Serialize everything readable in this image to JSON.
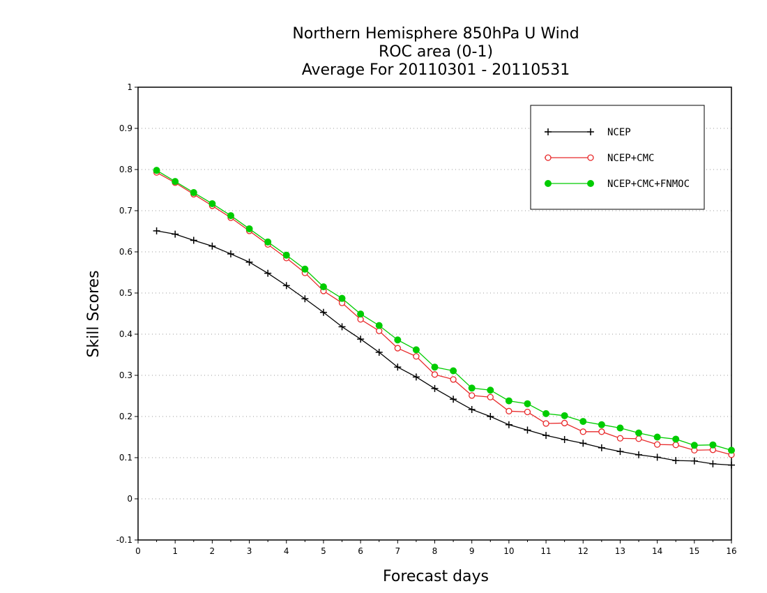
{
  "chart_data": {
    "type": "line",
    "title": "Northern Hemisphere 850hPa U Wind",
    "subtitle": "ROC area (0-1)",
    "subtitle2": "Average For 20110301 - 20110531",
    "xlabel": "Forecast days",
    "ylabel": "Skill Scores",
    "xlim": [
      0,
      16
    ],
    "ylim": [
      -0.1,
      1
    ],
    "xticks": [
      "0",
      "1",
      "2",
      "3",
      "4",
      "5",
      "6",
      "7",
      "8",
      "9",
      "10",
      "11",
      "12",
      "13",
      "14",
      "15",
      "16"
    ],
    "yticks": [
      "-0.1",
      "0",
      "0.1",
      "0.2",
      "0.3",
      "0.4",
      "0.5",
      "0.6",
      "0.7",
      "0.8",
      "0.9",
      "1"
    ],
    "grid": true,
    "legend_position": "top-right",
    "x": [
      0.5,
      1,
      1.5,
      2,
      2.5,
      3,
      3.5,
      4,
      4.5,
      5,
      5.5,
      6,
      6.5,
      7,
      7.5,
      8,
      8.5,
      9,
      9.5,
      10,
      10.5,
      11,
      11.5,
      12,
      12.5,
      13,
      13.5,
      14,
      14.5,
      15,
      15.5,
      16
    ],
    "series": [
      {
        "name": "NCEP",
        "color": "#000000",
        "marker": "plus",
        "values": [
          0.651,
          0.643,
          0.628,
          0.614,
          0.595,
          0.575,
          0.548,
          0.518,
          0.486,
          0.453,
          0.418,
          0.388,
          0.356,
          0.32,
          0.296,
          0.268,
          0.242,
          0.217,
          0.2,
          0.18,
          0.167,
          0.154,
          0.144,
          0.135,
          0.124,
          0.115,
          0.107,
          0.101,
          0.093,
          0.092,
          0.085,
          0.082
        ]
      },
      {
        "name": "NCEP+CMC",
        "color": "#e8292a",
        "marker": "open-circle",
        "values": [
          0.793,
          0.768,
          0.74,
          0.712,
          0.683,
          0.651,
          0.618,
          0.585,
          0.549,
          0.505,
          0.476,
          0.436,
          0.408,
          0.366,
          0.346,
          0.302,
          0.29,
          0.251,
          0.247,
          0.213,
          0.211,
          0.183,
          0.184,
          0.163,
          0.163,
          0.147,
          0.146,
          0.132,
          0.131,
          0.118,
          0.119,
          0.107
        ]
      },
      {
        "name": "NCEP+CMC+FNMOC",
        "color": "#00cc00",
        "marker": "filled-circle",
        "values": [
          0.798,
          0.771,
          0.744,
          0.717,
          0.688,
          0.656,
          0.624,
          0.592,
          0.558,
          0.515,
          0.487,
          0.449,
          0.421,
          0.386,
          0.362,
          0.32,
          0.311,
          0.269,
          0.264,
          0.238,
          0.231,
          0.207,
          0.202,
          0.188,
          0.18,
          0.172,
          0.16,
          0.15,
          0.145,
          0.13,
          0.131,
          0.118
        ]
      }
    ]
  }
}
